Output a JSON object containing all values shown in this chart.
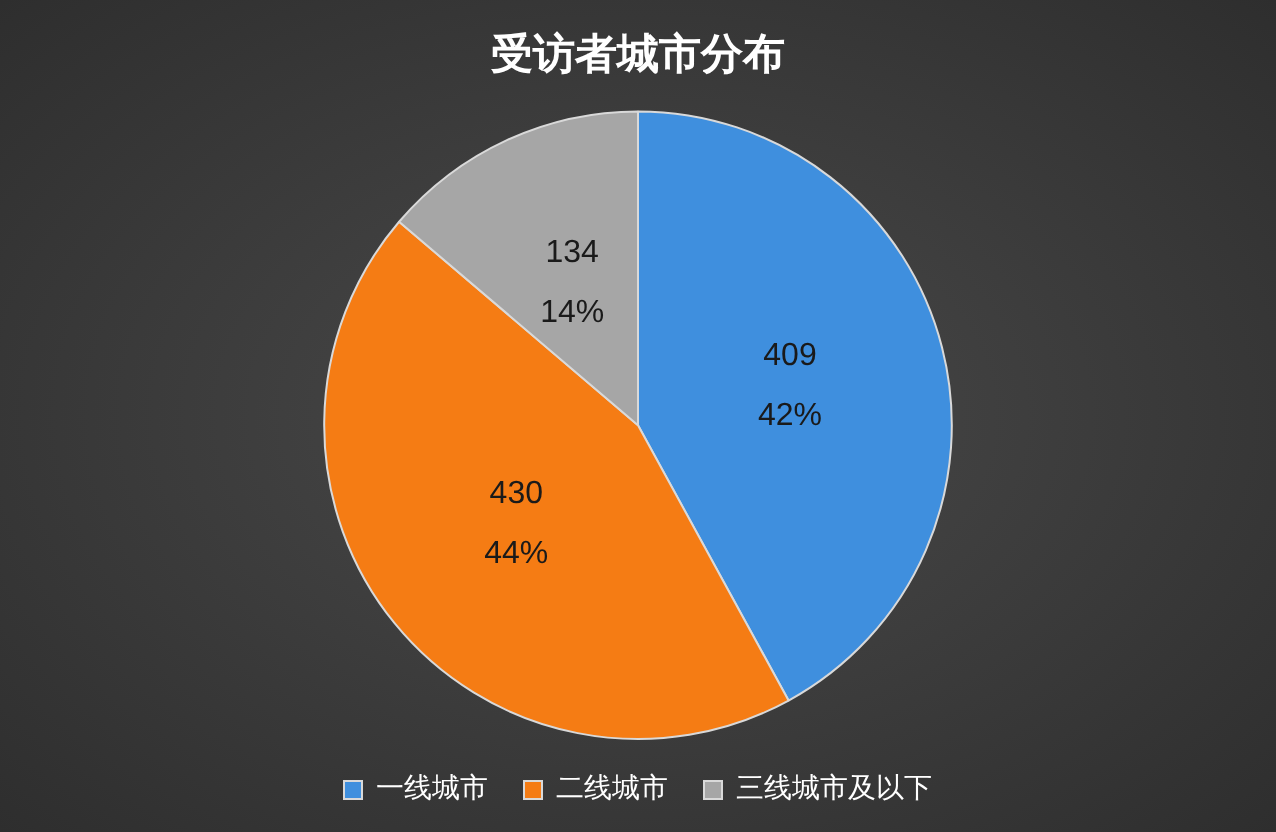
{
  "chart_data": {
    "type": "pie",
    "title": "受访者城市分布",
    "categories": [
      "一线城市",
      "二线城市",
      "三线城市及以下"
    ],
    "values": [
      409,
      430,
      134
    ],
    "colors": [
      "#3f8fde",
      "#f57c14",
      "#a6a6a6"
    ],
    "value_labels": [
      "409\n42%",
      "430\n44%",
      "134\n14%"
    ],
    "legend": "bottom"
  }
}
